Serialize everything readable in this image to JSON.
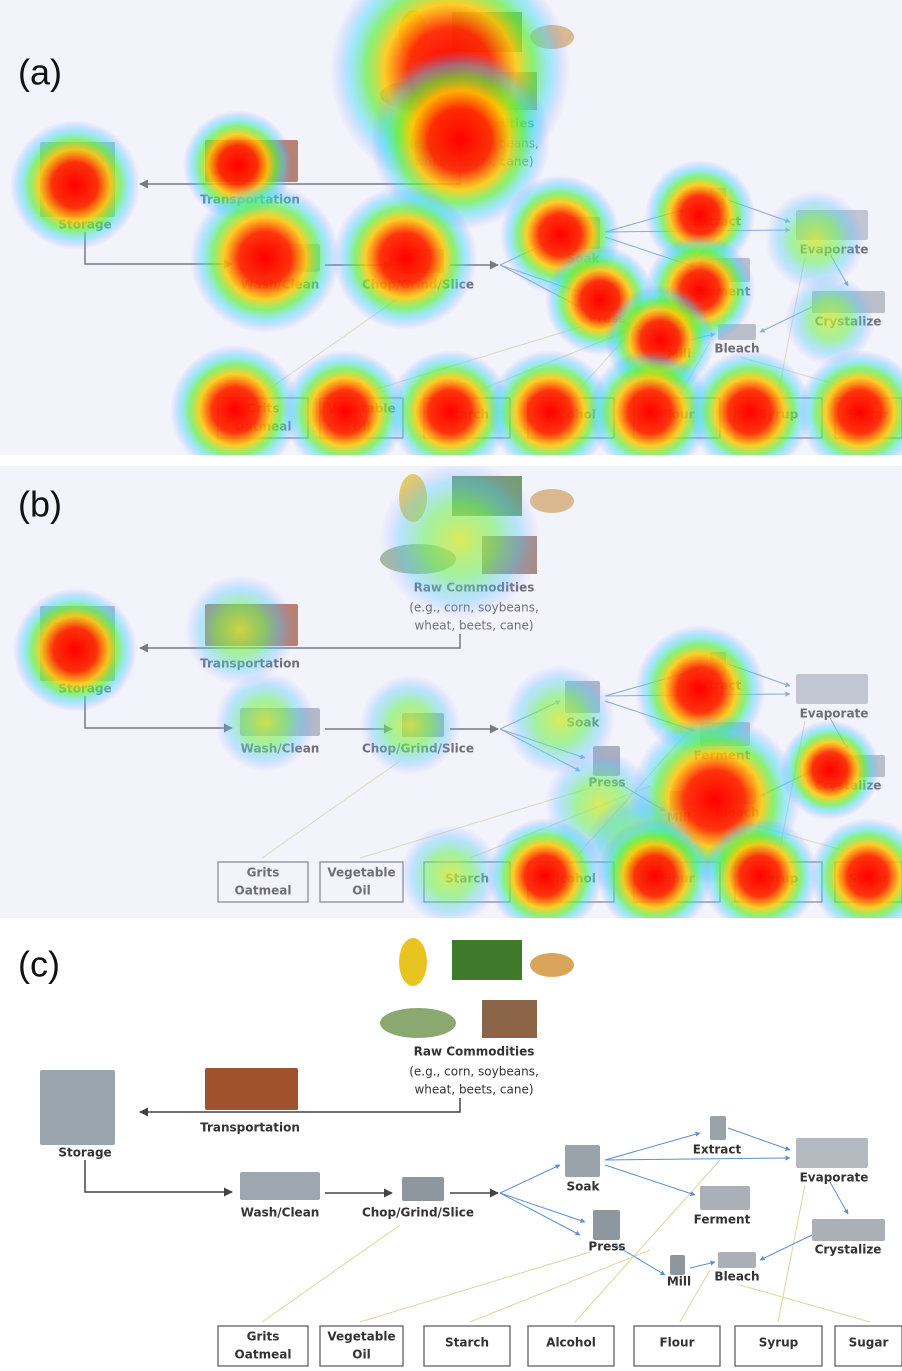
{
  "panels": [
    {
      "label": "(a)"
    },
    {
      "label": "(b)"
    },
    {
      "label": "(c)"
    }
  ],
  "diagram": {
    "source": {
      "title": "Raw Commodities",
      "note": [
        "(e.g., corn, soybeans,",
        "wheat, beets, cane)"
      ]
    },
    "nodes": [
      {
        "label": "Storage"
      },
      {
        "label": "Transportation"
      },
      {
        "label": "Wash/Clean"
      },
      {
        "label": "Chop/Grind/Slice"
      },
      {
        "label": "Soak"
      },
      {
        "label": "Extract"
      },
      {
        "label": "Evaporate"
      },
      {
        "label": "Ferment"
      },
      {
        "label": "Press"
      },
      {
        "label": "Crystalize"
      },
      {
        "label": "Mill"
      },
      {
        "label": "Bleach"
      }
    ],
    "products": [
      [
        "Grits",
        "Oatmeal"
      ],
      [
        "Vegetable",
        "Oil"
      ],
      [
        "Starch"
      ],
      [
        "Alcohol"
      ],
      [
        "Flour"
      ],
      [
        "Syrup"
      ],
      [
        "Sugar"
      ]
    ]
  }
}
